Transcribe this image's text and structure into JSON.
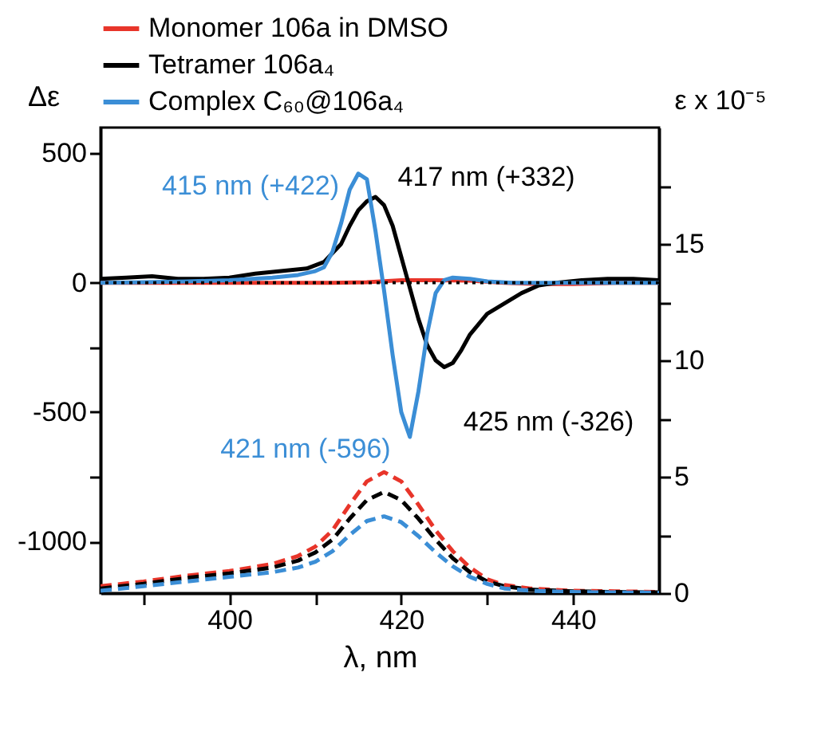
{
  "chart_data": {
    "type": "line",
    "xlabel": "λ, nm",
    "ylabel": "Δε",
    "y2label": "ε x 10⁻⁵",
    "legend": "top",
    "grid": false,
    "xlim": [
      385,
      450
    ],
    "xticks": [
      {
        "value": 390,
        "label": null
      },
      400,
      {
        "value": 410,
        "label": null
      },
      420,
      {
        "value": 430,
        "label": null
      },
      440
    ],
    "ylim": [
      -1200,
      600
    ],
    "yticks": [
      500,
      0,
      {
        "value": -250,
        "label": null
      },
      -500,
      {
        "value": -750,
        "label": null
      },
      -1000
    ],
    "y2lim": [
      0,
      20
    ],
    "y2ticks": [
      0,
      {
        "value": 2.5,
        "label": null
      },
      5,
      {
        "value": 7.5,
        "label": null
      },
      10,
      {
        "value": 12.5,
        "label": null
      },
      15,
      {
        "value": 17.5,
        "label": null
      }
    ],
    "ref_lines": [
      {
        "axis": "y",
        "value": 0,
        "color": "#000000",
        "line_style": "dotted"
      }
    ],
    "series": [
      {
        "name": "Monomer 106a in DMSO",
        "color": "#e8352a",
        "line_style": "solid",
        "x": [
          385,
          395,
          405,
          412,
          416,
          420,
          424,
          428,
          432,
          436,
          440,
          445,
          450
        ],
        "values": [
          0,
          0,
          0,
          0,
          2,
          10,
          10,
          8,
          0,
          -5,
          -5,
          0,
          0
        ]
      },
      {
        "name": "Tetramer 106a₄",
        "color": "#000000",
        "line_style": "solid",
        "x": [
          385,
          388,
          391,
          394,
          397,
          400,
          403,
          406,
          409,
          411,
          413,
          414,
          415,
          416,
          417,
          418,
          419,
          420,
          421,
          422,
          423,
          424,
          425,
          426,
          427,
          428,
          429,
          430,
          432,
          434,
          436,
          438,
          441,
          444,
          447,
          450
        ],
        "values": [
          15,
          20,
          25,
          15,
          15,
          20,
          35,
          45,
          55,
          80,
          150,
          220,
          280,
          315,
          332,
          300,
          220,
          100,
          -20,
          -140,
          -240,
          -300,
          -326,
          -310,
          -260,
          -200,
          -160,
          -120,
          -80,
          -40,
          -10,
          0,
          10,
          15,
          15,
          10
        ]
      },
      {
        "name": "Complex C₆₀@106a₄",
        "color": "#3b8ed6",
        "line_style": "solid",
        "x": [
          385,
          390,
          395,
          400,
          405,
          408,
          410,
          411,
          412,
          413,
          414,
          415,
          416,
          417,
          418,
          419,
          420,
          421,
          422,
          423,
          424,
          425,
          426,
          428,
          430,
          433,
          436,
          440,
          445,
          450
        ],
        "values": [
          0,
          2,
          5,
          10,
          20,
          30,
          45,
          60,
          120,
          230,
          360,
          422,
          400,
          200,
          -30,
          -280,
          -500,
          -596,
          -420,
          -200,
          -40,
          10,
          20,
          15,
          5,
          0,
          0,
          0,
          0,
          0
        ]
      },
      {
        "color": "#e8352a",
        "line_style": "dashed",
        "axis": "y2",
        "x": [
          385,
          390,
          395,
          400,
          405,
          408,
          410,
          412,
          414,
          416,
          418,
          420,
          422,
          424,
          426,
          428,
          430,
          432,
          435,
          440,
          445,
          450
        ],
        "values": [
          0.3,
          0.5,
          0.75,
          0.95,
          1.25,
          1.6,
          2.0,
          2.7,
          3.8,
          4.8,
          5.2,
          4.8,
          3.8,
          2.7,
          1.8,
          1.1,
          0.6,
          0.35,
          0.2,
          0.1,
          0.08,
          0.05
        ]
      },
      {
        "color": "#000000",
        "line_style": "dashed",
        "axis": "y2",
        "x": [
          385,
          390,
          395,
          400,
          405,
          408,
          410,
          412,
          414,
          416,
          418,
          420,
          422,
          424,
          426,
          428,
          430,
          432,
          435,
          440,
          445,
          450
        ],
        "values": [
          0.2,
          0.4,
          0.65,
          0.85,
          1.1,
          1.4,
          1.75,
          2.3,
          3.2,
          4.0,
          4.35,
          4.0,
          3.2,
          2.3,
          1.5,
          0.9,
          0.5,
          0.3,
          0.15,
          0.08,
          0.05,
          0.03
        ]
      },
      {
        "color": "#3b8ed6",
        "line_style": "dashed",
        "axis": "y2",
        "x": [
          385,
          390,
          395,
          400,
          405,
          408,
          410,
          412,
          414,
          416,
          418,
          420,
          422,
          424,
          426,
          428,
          430,
          432,
          435,
          440,
          445,
          450
        ],
        "values": [
          0.1,
          0.3,
          0.5,
          0.7,
          0.9,
          1.1,
          1.35,
          1.8,
          2.5,
          3.1,
          3.3,
          3.05,
          2.45,
          1.75,
          1.15,
          0.7,
          0.4,
          0.2,
          0.1,
          0.05,
          0.03,
          0.02
        ]
      }
    ],
    "annotations": [
      {
        "text": "415 nm (+422)",
        "x": 415,
        "y": 422
      },
      {
        "text": "417 nm (+332)",
        "x": 417,
        "y": 332
      },
      {
        "text": "421 nm (-596)",
        "x": 421,
        "y": -596
      },
      {
        "text": "425 nm (-326)",
        "x": 425,
        "y": -326
      }
    ]
  }
}
